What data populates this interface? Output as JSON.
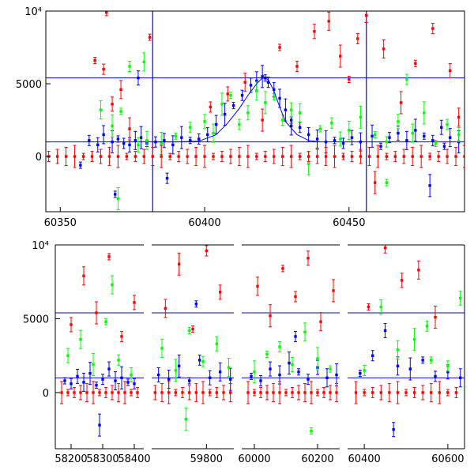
{
  "colors": {
    "red": "#ff0000",
    "green": "#00ff00",
    "blue": "#0000ff",
    "axes": "#000000"
  },
  "chart_data": [
    {
      "type": "scatter",
      "panel": "top",
      "xlim": [
        60345,
        60490
      ],
      "ylim": [
        -3800,
        10000
      ],
      "xticks": [
        60350,
        60400,
        60450
      ],
      "xticklabels": [
        "60350",
        "60400",
        "60450"
      ],
      "yticks": [
        0,
        5000,
        10000
      ],
      "yticklabels": [
        "0",
        "5000",
        "10⁴"
      ],
      "hlines": [
        5400,
        1000
      ],
      "vlines": [
        60382,
        60456
      ],
      "model_curve": {
        "x": [
          60382,
          60390,
          60398,
          60404,
          60408,
          60412,
          60415,
          60418,
          60420,
          60422,
          60424,
          60426,
          60428,
          60432,
          60436,
          60440
        ],
        "y": [
          1000,
          1000,
          1050,
          1500,
          2300,
          3300,
          4200,
          5000,
          5400,
          5300,
          4500,
          3400,
          2400,
          1500,
          1100,
          1000
        ]
      },
      "series": [
        {
          "color": "blue",
          "x": [
            60357,
            60360,
            60363,
            60365,
            60368,
            60370,
            60372,
            60374,
            60376,
            60378,
            60380,
            60383,
            60386,
            60389,
            60392,
            60395,
            60398,
            60401,
            60404,
            60407,
            60410,
            60413,
            60416,
            60418,
            60420,
            60421,
            60422,
            60424,
            60426,
            60428,
            60430,
            60433,
            60436,
            60439,
            60442,
            60445,
            60448,
            60451,
            60454,
            60458,
            60461,
            60464,
            60467,
            60470,
            60473,
            60476,
            60479,
            60482,
            60485,
            60488,
            60369,
            60387,
            60377,
            60430,
            60478,
            60483
          ],
          "y": [
            -600,
            1100,
            800,
            1500,
            1000,
            1200,
            900,
            800,
            1100,
            1300,
            900,
            1000,
            1100,
            800,
            1300,
            1100,
            1200,
            1500,
            2200,
            2900,
            3500,
            4200,
            4900,
            5200,
            5500,
            5400,
            5100,
            4600,
            4000,
            3200,
            2500,
            2000,
            1500,
            1200,
            1000,
            1100,
            900,
            1300,
            1000,
            1400,
            700,
            1300,
            1600,
            1100,
            1800,
            1400,
            1100,
            2000,
            1300,
            1000,
            -2600,
            -1500,
            5400,
            2100,
            -2000,
            700
          ]
        },
        {
          "color": "green",
          "x": [
            60364,
            60368,
            60371,
            60374,
            60377,
            60380,
            60385,
            60390,
            60395,
            60400,
            60403,
            60406,
            60409,
            60412,
            60415,
            60418,
            60421,
            60424,
            60427,
            60430,
            60433,
            60436,
            60440,
            60444,
            60447,
            60450,
            60454,
            60459,
            60463,
            60467,
            60472,
            60476,
            60480,
            60484,
            60488,
            60379,
            60370,
            60463,
            60470
          ],
          "y": [
            3200,
            2100,
            3100,
            6200,
            800,
            1100,
            900,
            1400,
            2000,
            2400,
            1600,
            3600,
            4200,
            2200,
            3000,
            4500,
            3700,
            4100,
            2500,
            3200,
            3000,
            -500,
            1900,
            2300,
            1200,
            1800,
            2700,
            1500,
            1000,
            2400,
            1600,
            3000,
            900,
            2200,
            1500,
            6500,
            -2900,
            -1800,
            5300
          ]
        },
        {
          "color": "red",
          "x": [
            60346,
            60349,
            60352,
            60355,
            60358,
            60361,
            60364,
            60367,
            60370,
            60373,
            60376,
            60379,
            60382,
            60385,
            60388,
            60391,
            60394,
            60397,
            60400,
            60403,
            60406,
            60409,
            60412,
            60415,
            60418,
            60421,
            60424,
            60427,
            60430,
            60433,
            60436,
            60439,
            60442,
            60445,
            60448,
            60451,
            60454,
            60457,
            60460,
            60463,
            60466,
            60469,
            60472,
            60475,
            60478,
            60481,
            60484,
            60487,
            60490,
            60362,
            60365,
            60368,
            60371,
            60374,
            60381,
            60402,
            60408,
            60414,
            60420,
            60426,
            60432,
            60438,
            60443,
            60447,
            60450,
            60453,
            60456,
            60462,
            60468,
            60473,
            60479,
            60485,
            60488,
            60459,
            60366
          ],
          "y": [
            0,
            0,
            0,
            0,
            0,
            0,
            0,
            0,
            0,
            0,
            0,
            0,
            0,
            0,
            0,
            0,
            0,
            0,
            0,
            0,
            0,
            0,
            0,
            0,
            0,
            0,
            0,
            0,
            0,
            0,
            0,
            0,
            0,
            0,
            0,
            0,
            0,
            0,
            0,
            0,
            0,
            0,
            0,
            0,
            0,
            0,
            0,
            0,
            0,
            6600,
            6000,
            3600,
            4600,
            1900,
            8200,
            3400,
            4300,
            5100,
            2500,
            7500,
            6200,
            8600,
            9300,
            6900,
            5300,
            8100,
            9700,
            7400,
            3700,
            6400,
            8800,
            5900,
            2700,
            -1800,
            9900
          ]
        }
      ]
    },
    {
      "type": "scatter",
      "panel": "bottom",
      "ylim": [
        -3800,
        10000
      ],
      "yticks": [
        0,
        5000,
        10000
      ],
      "yticklabels": [
        "0",
        "5000",
        "10⁴"
      ],
      "hlines": [
        5400,
        1000
      ],
      "segments": [
        {
          "xlim": [
            58150,
            58430
          ],
          "xticks": [
            58200,
            58300,
            58400
          ],
          "xticklabels": [
            "58200",
            "58300",
            "58400"
          ]
        },
        {
          "xlim": [
            59640,
            59880
          ],
          "xticks": [
            59800
          ],
          "xticklabels": [
            "59800"
          ]
        },
        {
          "xlim": [
            59960,
            60270
          ],
          "xticks": [
            60000,
            60200
          ],
          "xticklabels": [
            "60000",
            "60200"
          ]
        },
        {
          "xlim": [
            60360,
            60640
          ],
          "xticks": [
            60400,
            60600
          ],
          "xticklabels": [
            "60400",
            "60600"
          ]
        }
      ],
      "series": [
        {
          "color": "blue",
          "x": [
            58180,
            58200,
            58220,
            58240,
            58260,
            58280,
            58300,
            58320,
            58340,
            58360,
            58380,
            58400,
            59660,
            59690,
            59720,
            59750,
            59780,
            59810,
            59840,
            59870,
            59990,
            60020,
            60050,
            60080,
            60110,
            60140,
            60170,
            60200,
            60230,
            60260,
            60390,
            60420,
            60450,
            60480,
            60510,
            60540,
            60570,
            60600,
            60630,
            58290,
            59770,
            60130,
            60470
          ],
          "y": [
            800,
            600,
            1100,
            700,
            1300,
            500,
            900,
            1600,
            800,
            1000,
            700,
            600,
            1200,
            900,
            1800,
            800,
            2200,
            1000,
            1400,
            900,
            1100,
            800,
            1600,
            1200,
            2000,
            1400,
            900,
            1700,
            1000,
            1200,
            1300,
            2500,
            4200,
            1800,
            1600,
            2200,
            1100,
            1400,
            1000,
            -2200,
            6000,
            3800,
            -2500
          ]
        },
        {
          "color": "green",
          "x": [
            58190,
            58230,
            58270,
            58310,
            58350,
            58390,
            59670,
            59710,
            59750,
            59790,
            59830,
            59865,
            60000,
            60040,
            60080,
            60120,
            60160,
            60200,
            60240,
            60400,
            60440,
            60480,
            60520,
            60560,
            60600,
            60630,
            58330,
            59740,
            60180,
            60550
          ],
          "y": [
            2500,
            3600,
            1900,
            4800,
            2200,
            1200,
            3000,
            1500,
            4200,
            2100,
            3300,
            1700,
            1400,
            2600,
            3100,
            1900,
            4100,
            2300,
            1600,
            1500,
            5800,
            2900,
            3600,
            2200,
            1800,
            6400,
            7300,
            -1800,
            -2600,
            4500
          ]
        },
        {
          "color": "red",
          "x": [
            58170,
            58190,
            58210,
            58230,
            58250,
            58270,
            58290,
            58310,
            58330,
            58350,
            58370,
            58390,
            58410,
            59650,
            59670,
            59690,
            59710,
            59730,
            59750,
            59770,
            59790,
            59810,
            59830,
            59850,
            59870,
            59980,
            60000,
            60020,
            60040,
            60060,
            60080,
            60100,
            60120,
            60140,
            60160,
            60180,
            60200,
            60220,
            60240,
            60260,
            60380,
            60400,
            60420,
            60440,
            60460,
            60480,
            60500,
            60520,
            60540,
            60560,
            60580,
            60600,
            60620,
            58200,
            58240,
            58280,
            58320,
            58360,
            58400,
            59680,
            59720,
            59760,
            59800,
            59840,
            60010,
            60050,
            60090,
            60130,
            60170,
            60210,
            60250,
            60410,
            60450,
            60490,
            60530,
            60570
          ],
          "y": [
            0,
            0,
            0,
            0,
            0,
            0,
            0,
            0,
            0,
            0,
            0,
            0,
            0,
            0,
            0,
            0,
            0,
            0,
            0,
            0,
            0,
            0,
            0,
            0,
            0,
            0,
            0,
            0,
            0,
            0,
            0,
            0,
            0,
            0,
            0,
            0,
            0,
            0,
            0,
            0,
            0,
            0,
            0,
            0,
            0,
            0,
            0,
            0,
            0,
            0,
            0,
            0,
            0,
            4600,
            7900,
            5400,
            9200,
            3800,
            6100,
            5700,
            8700,
            4300,
            9600,
            6800,
            7200,
            5200,
            8400,
            6500,
            9100,
            4800,
            6900,
            5800,
            9800,
            7600,
            8300,
            5100
          ]
        }
      ]
    }
  ]
}
